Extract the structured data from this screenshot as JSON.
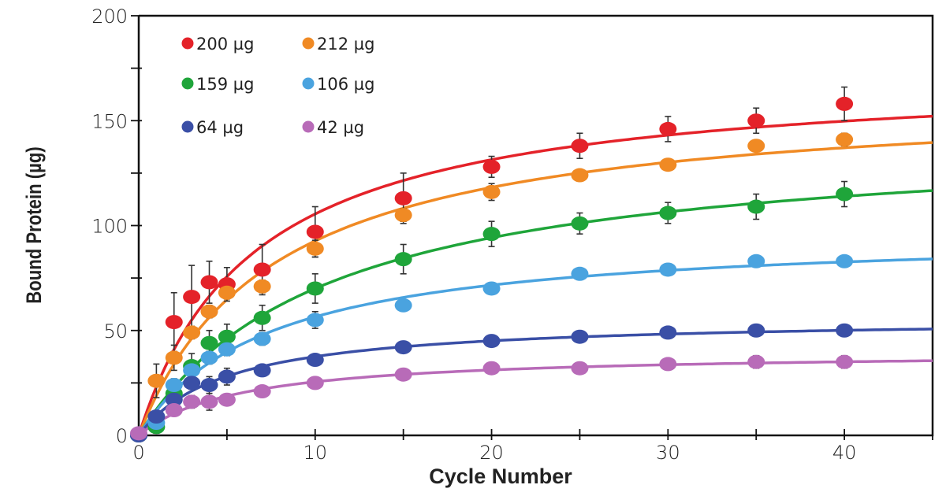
{
  "chart_data": {
    "type": "scatter",
    "title": "",
    "xlabel": "Cycle Number",
    "ylabel": "Bound Protein (µg)",
    "xlim": [
      0,
      45
    ],
    "ylim": [
      0,
      200
    ],
    "xticks": [
      0,
      10,
      20,
      30,
      40
    ],
    "yticks": [
      0,
      50,
      100,
      150,
      200
    ],
    "grid": false,
    "legend_position": "top-left",
    "fit_curves": true,
    "x": [
      0,
      1,
      2,
      3,
      4,
      5,
      7,
      10,
      15,
      20,
      25,
      30,
      35,
      40
    ],
    "series": [
      {
        "name": "200 µg",
        "color": "#e42229",
        "values": [
          0,
          null,
          54,
          66,
          73,
          72,
          79,
          97,
          113,
          128,
          138,
          146,
          150,
          158
        ],
        "errors": [
          0,
          null,
          14,
          15,
          10,
          8,
          12,
          12,
          12,
          5,
          6,
          6,
          6,
          8
        ]
      },
      {
        "name": "212 µg",
        "color": "#f08a24",
        "values": [
          0,
          26,
          37,
          49,
          59,
          68,
          71,
          89,
          105,
          116,
          124,
          129,
          138,
          141
        ],
        "errors": [
          0,
          8,
          6,
          3,
          3,
          3,
          3,
          4,
          3,
          4,
          2,
          2,
          2,
          3
        ]
      },
      {
        "name": "159 µg",
        "color": "#1fa53a",
        "values": [
          0,
          4,
          20,
          33,
          44,
          47,
          56,
          70,
          84,
          96,
          101,
          106,
          109,
          115
        ],
        "errors": [
          0,
          3,
          5,
          6,
          6,
          6,
          6,
          7,
          7,
          6,
          5,
          5,
          6,
          6
        ]
      },
      {
        "name": "106 µg",
        "color": "#4aa3df",
        "values": [
          0,
          6,
          24,
          31,
          37,
          41,
          46,
          55,
          62,
          70,
          77,
          79,
          83,
          83
        ],
        "errors": [
          0,
          2,
          3,
          3,
          3,
          3,
          3,
          4,
          2,
          2,
          2,
          2,
          2,
          2
        ]
      },
      {
        "name": "64 µg",
        "color": "#3a4fa6",
        "values": [
          0,
          9,
          17,
          25,
          24,
          28,
          31,
          36,
          42,
          45,
          47,
          49,
          50,
          50
        ],
        "errors": [
          0,
          2,
          2,
          3,
          4,
          4,
          2,
          2,
          2,
          2,
          2,
          2,
          2,
          2
        ]
      },
      {
        "name": "42 µg",
        "color": "#b86bb8",
        "values": [
          1,
          null,
          12,
          16,
          16,
          17,
          21,
          25,
          29,
          32,
          32,
          34,
          35,
          35
        ],
        "errors": [
          0,
          null,
          2,
          3,
          4,
          2,
          2,
          2,
          2,
          2,
          2,
          2,
          3,
          3
        ]
      }
    ]
  }
}
